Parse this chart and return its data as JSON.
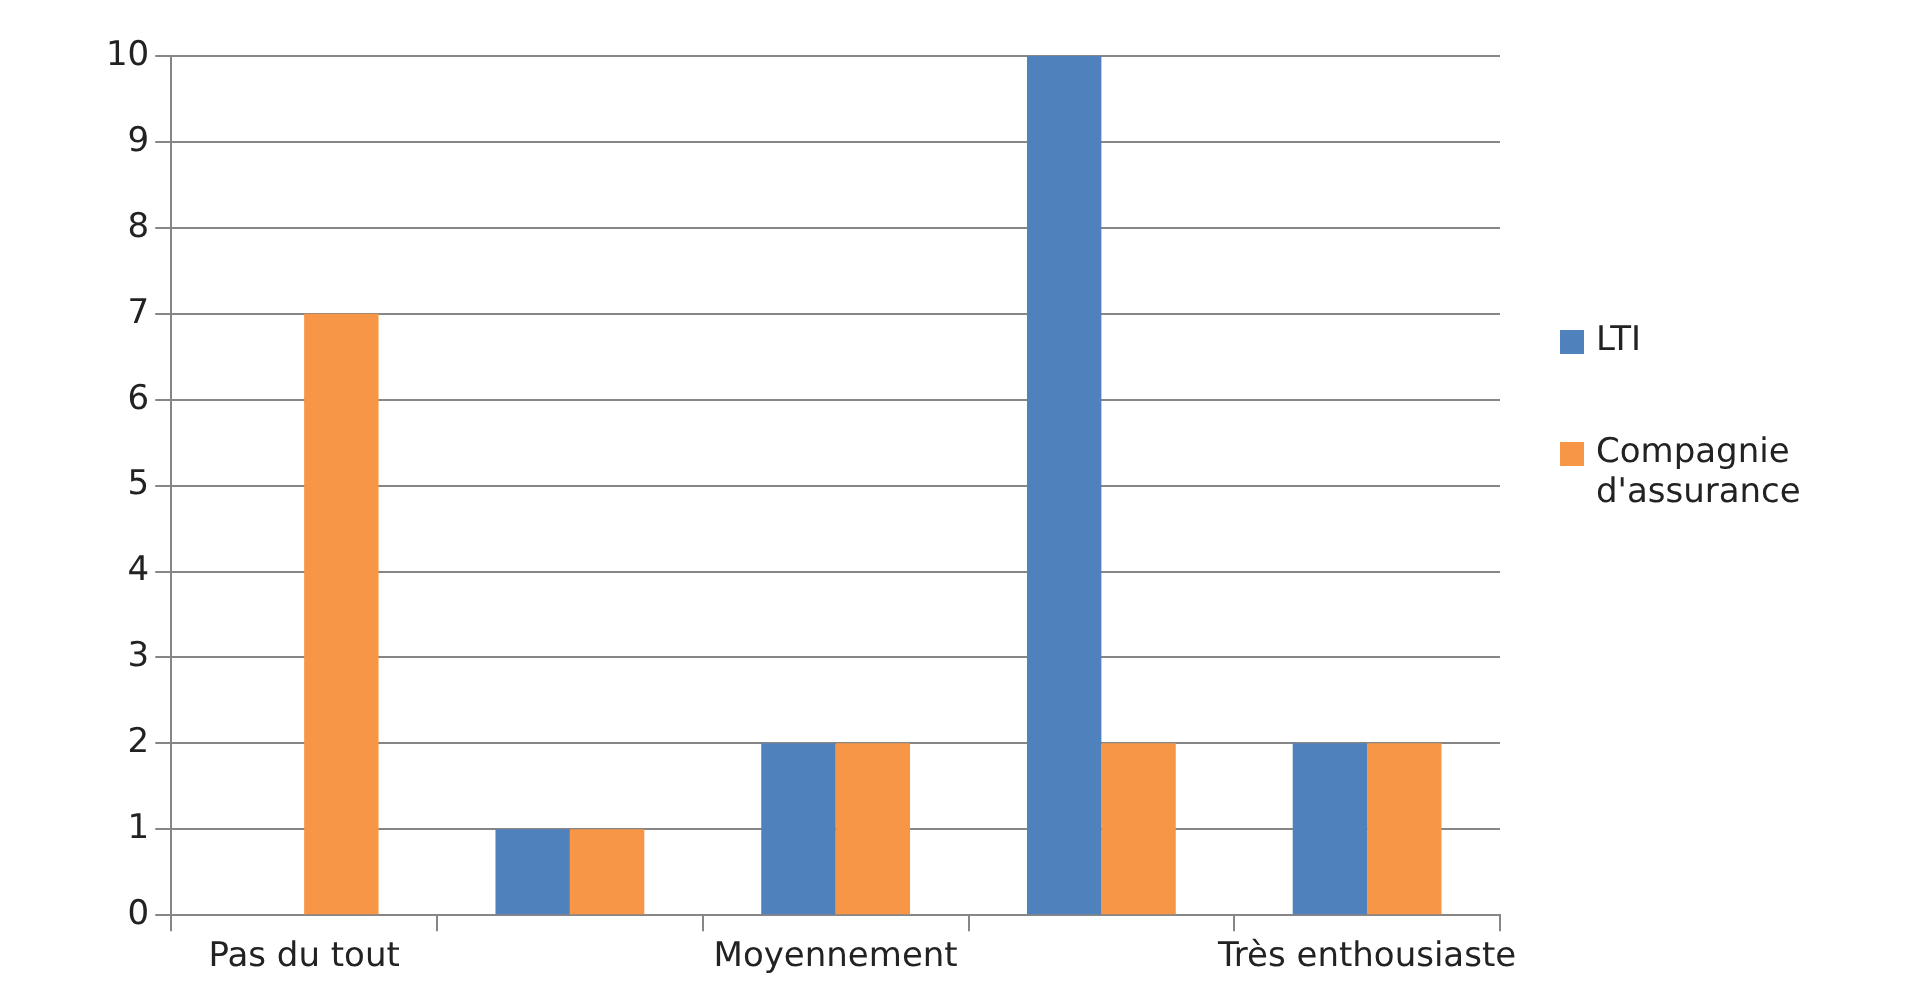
{
  "chart_data": {
    "type": "bar",
    "categories": [
      "Pas du tout",
      null,
      "Moyennement",
      null,
      "Très enthousiaste"
    ],
    "series": [
      {
        "name": "LTI",
        "color": "#4f81bd",
        "values": [
          0,
          1,
          2,
          10,
          2
        ]
      },
      {
        "name": "Compagnie d'assurance",
        "color": "#f79646",
        "values": [
          7,
          1,
          2,
          2,
          2
        ]
      }
    ],
    "ylim": [
      0,
      10
    ],
    "yticks": [
      0,
      1,
      2,
      3,
      4,
      5,
      6,
      7,
      8,
      9,
      10
    ],
    "grid": "y",
    "legend": "right"
  }
}
